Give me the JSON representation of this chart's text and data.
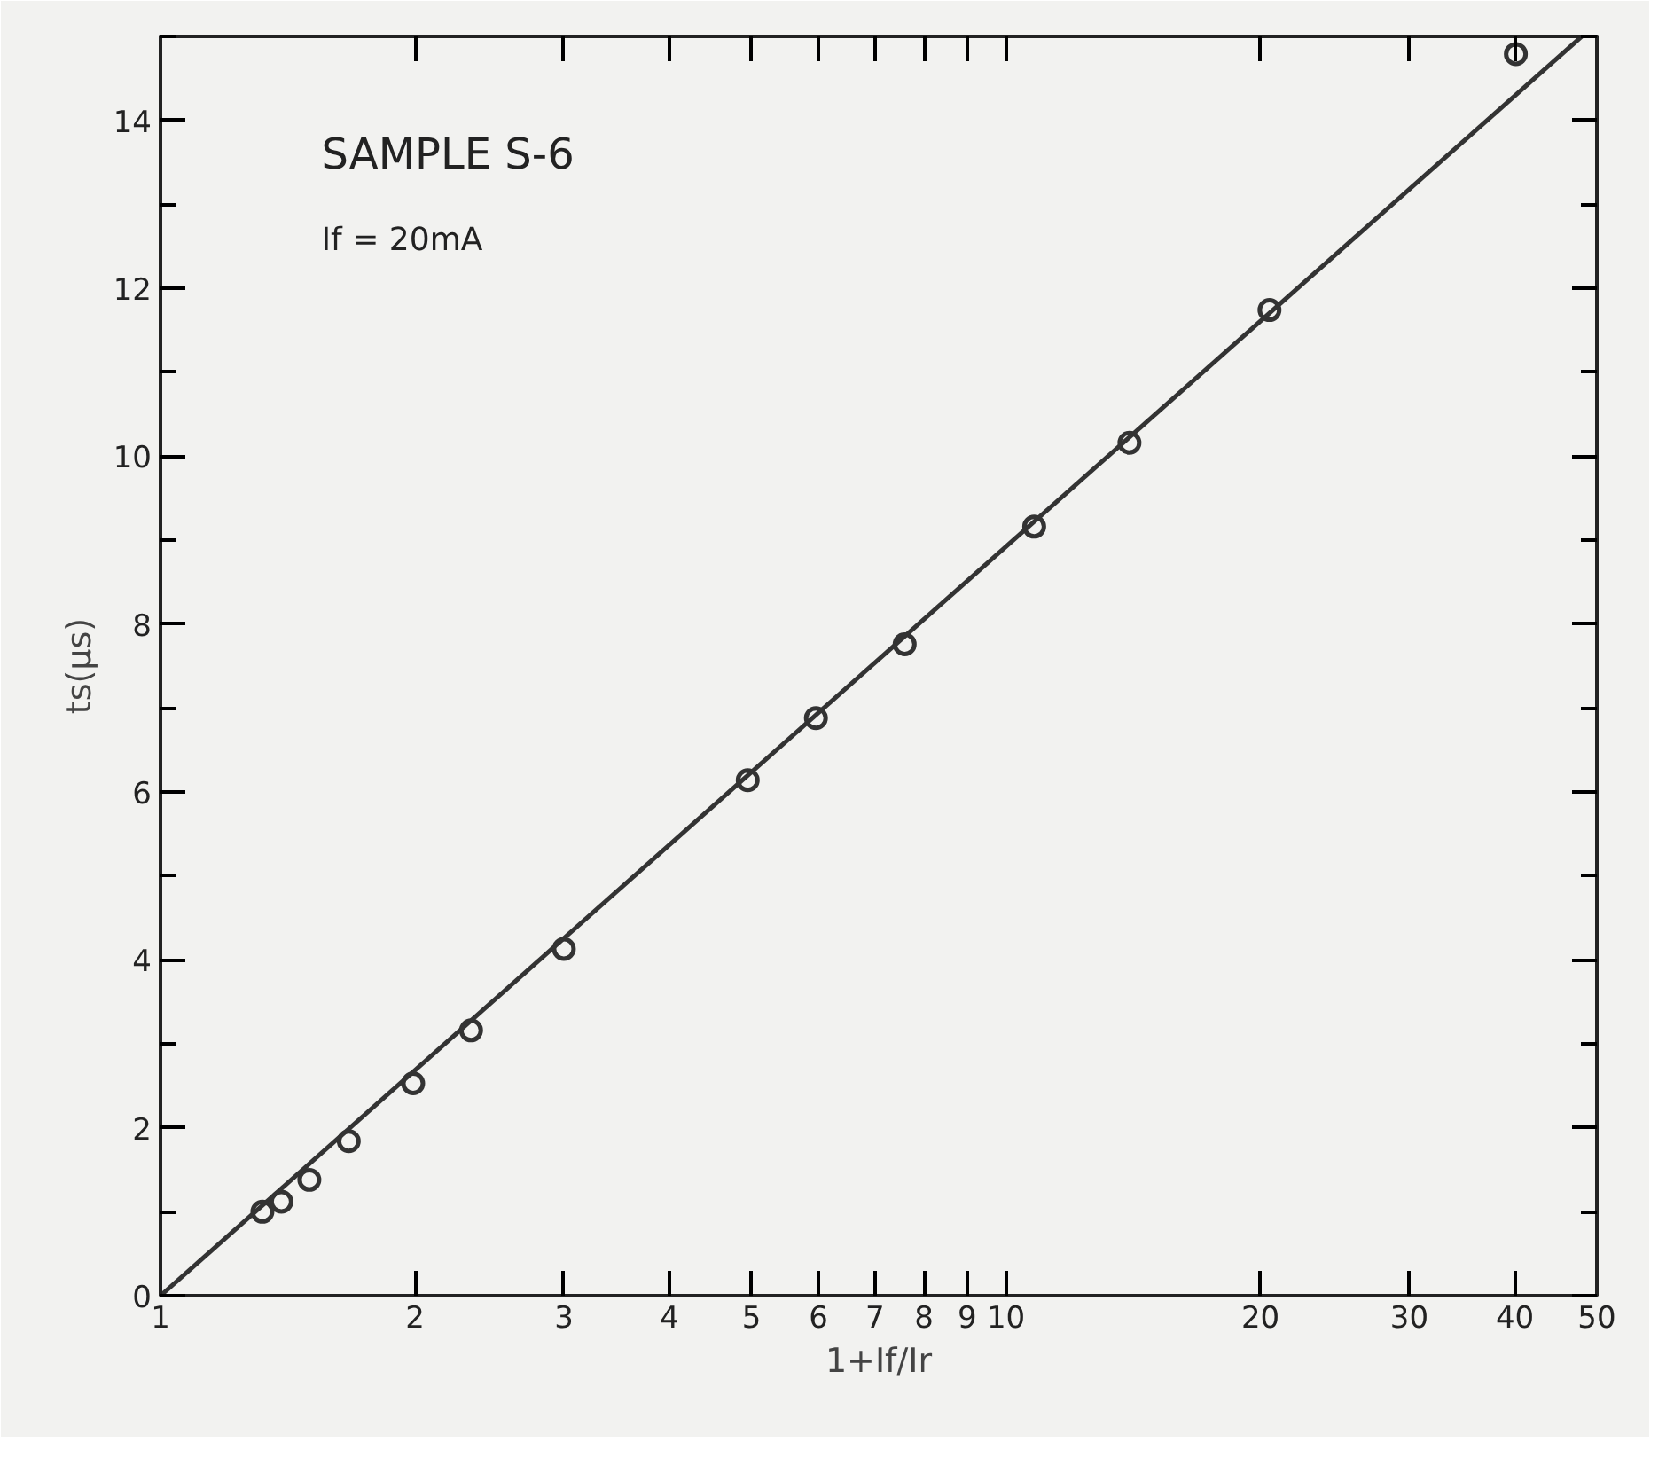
{
  "chart_data": {
    "type": "scatter",
    "xlabel": "1+If/Ir",
    "ylabel": "ts(μs)",
    "log": "x",
    "grid": false,
    "annotations": [
      "SAMPLE S-6",
      "If = 20mA"
    ],
    "xlim": [
      1,
      50
    ],
    "ylim": [
      0,
      15
    ],
    "xticks": [
      1,
      2,
      3,
      4,
      5,
      6,
      7,
      8,
      9,
      10,
      20,
      30,
      40,
      50
    ],
    "yticks": [
      0,
      2,
      4,
      6,
      8,
      10,
      12,
      14
    ],
    "series": [
      {
        "marker": "circle",
        "color": "#333333",
        "x": [
          1.32,
          1.39,
          1.5,
          1.67,
          1.99,
          2.33,
          3.0,
          4.95,
          5.96,
          7.59,
          10.8,
          14.0,
          20.5,
          40.1
        ],
        "values": [
          1.0,
          1.12,
          1.38,
          1.84,
          2.53,
          3.16,
          4.13,
          6.14,
          6.88,
          7.76,
          9.16,
          10.16,
          11.74,
          14.79
        ]
      },
      {
        "type": "line",
        "color": "#333333",
        "line_style": "solid",
        "x": [
          1,
          48
        ],
        "values": [
          0,
          15
        ]
      }
    ]
  }
}
